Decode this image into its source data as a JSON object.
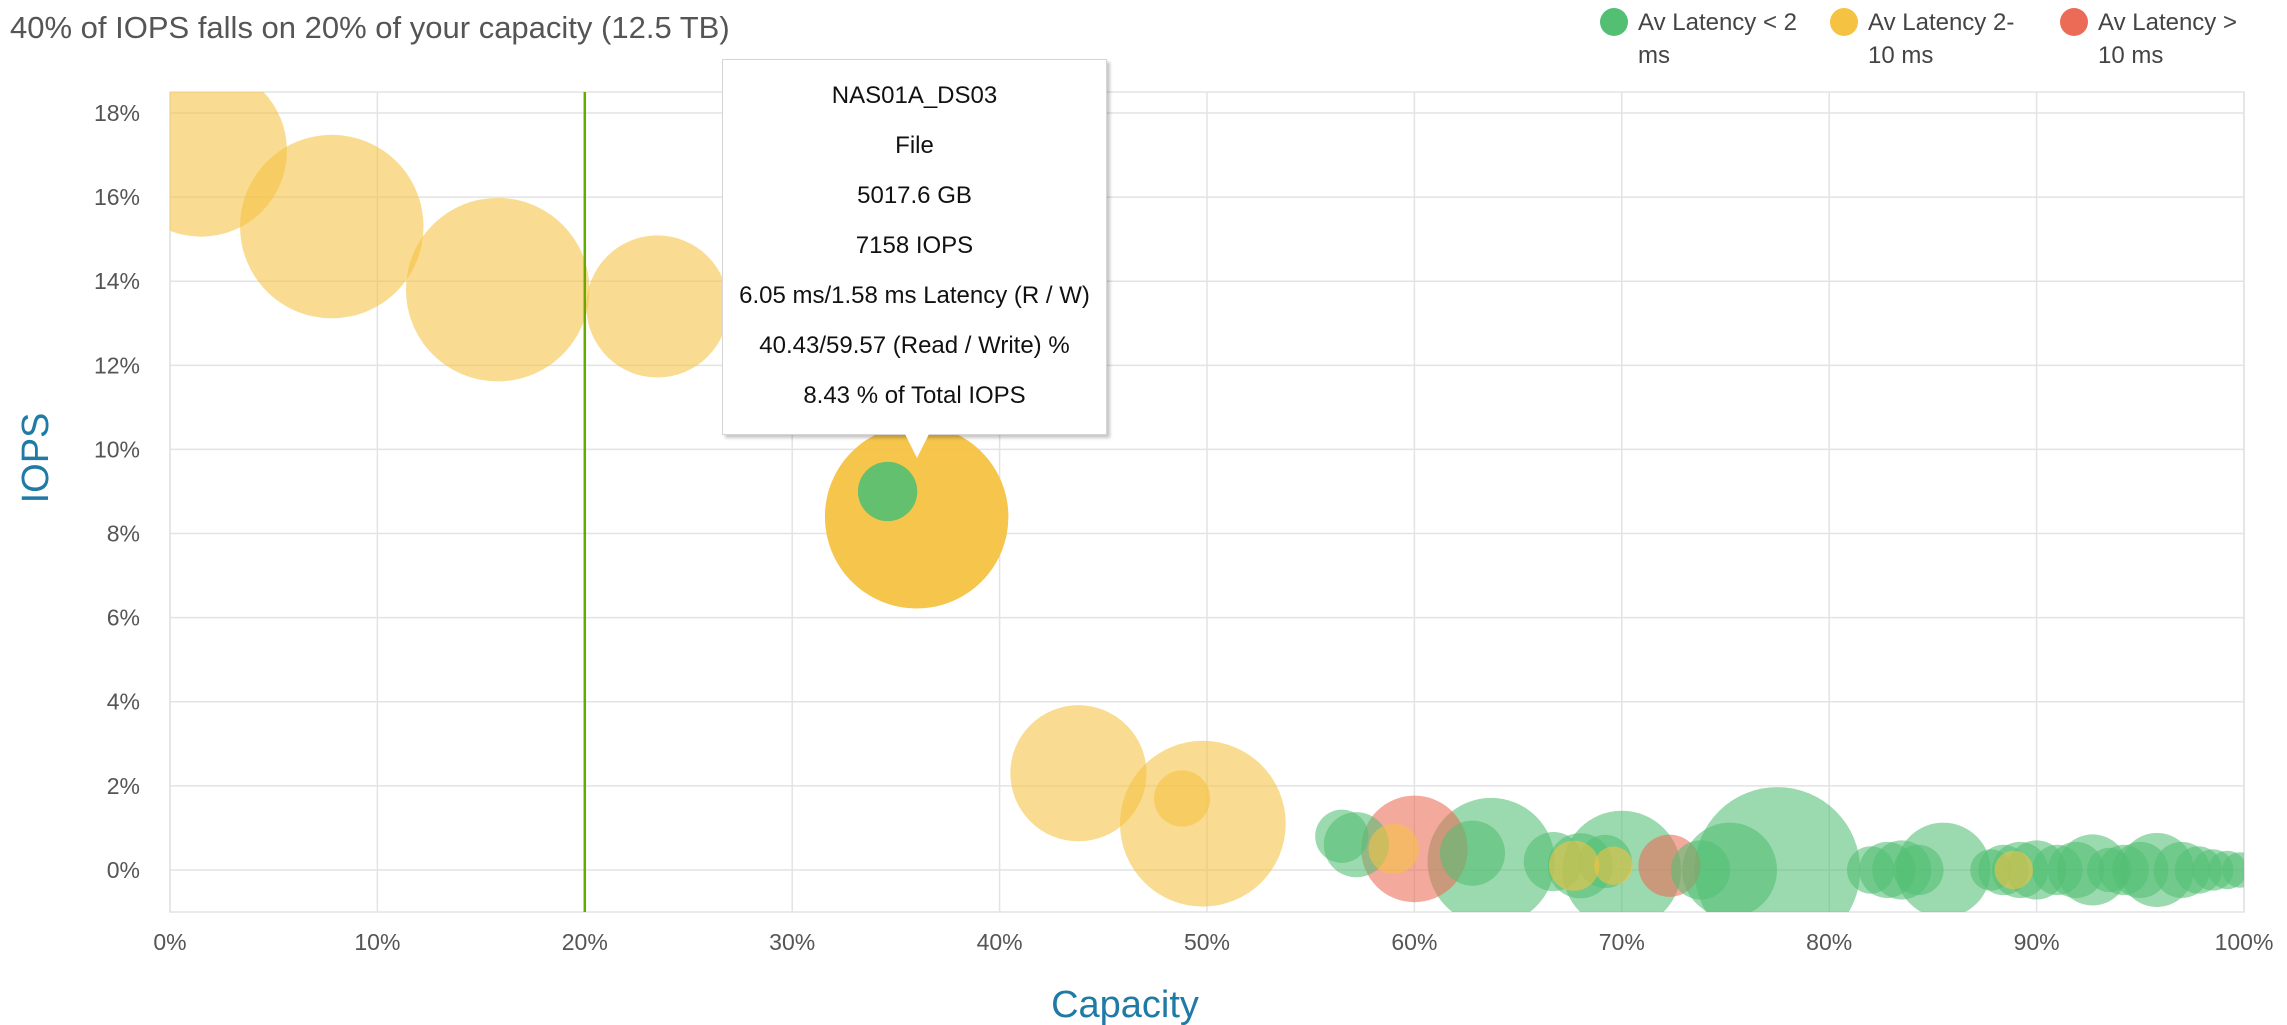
{
  "chart_data": {
    "type": "scatter",
    "title": "40% of IOPS falls on 20% of your capacity (12.5 TB)",
    "xlabel": "Capacity",
    "ylabel": "IOPS",
    "xlim": [
      0,
      100
    ],
    "ylim": [
      -1,
      18.5
    ],
    "x_ticks": [
      "0%",
      "10%",
      "20%",
      "30%",
      "40%",
      "50%",
      "60%",
      "70%",
      "80%",
      "90%",
      "100%"
    ],
    "y_ticks": [
      "0%",
      "2%",
      "4%",
      "6%",
      "8%",
      "10%",
      "12%",
      "14%",
      "16%",
      "18%"
    ],
    "grid": true,
    "legend_position": "top-right",
    "reference_line": {
      "axis": "x",
      "value": 20,
      "color": "#66aa00"
    },
    "colors": {
      "low": "#52bf73",
      "mid": "#f5c242",
      "high": "#ec6b56"
    },
    "series": [
      {
        "name": "Av Latency < 2 ms",
        "key": "low",
        "points": [
          {
            "x": 34.6,
            "y": 9.0,
            "size": 20
          },
          {
            "x": 56.5,
            "y": 0.8,
            "size": 18
          },
          {
            "x": 57.2,
            "y": 0.6,
            "size": 22
          },
          {
            "x": 62.8,
            "y": 0.4,
            "size": 22
          },
          {
            "x": 63.7,
            "y": 0.2,
            "size": 43
          },
          {
            "x": 66.7,
            "y": 0.2,
            "size": 20
          },
          {
            "x": 68.0,
            "y": 0.1,
            "size": 22
          },
          {
            "x": 69.2,
            "y": 0.2,
            "size": 18
          },
          {
            "x": 70.0,
            "y": 0.0,
            "size": 40
          },
          {
            "x": 73.8,
            "y": 0.0,
            "size": 20
          },
          {
            "x": 75.2,
            "y": 0.0,
            "size": 32
          },
          {
            "x": 77.5,
            "y": 0.0,
            "size": 56
          },
          {
            "x": 82.0,
            "y": 0.0,
            "size": 16
          },
          {
            "x": 82.8,
            "y": 0.0,
            "size": 19
          },
          {
            "x": 83.5,
            "y": 0.0,
            "size": 20
          },
          {
            "x": 84.3,
            "y": 0.0,
            "size": 17
          },
          {
            "x": 85.5,
            "y": 0.0,
            "size": 32
          },
          {
            "x": 87.8,
            "y": 0.0,
            "size": 14
          },
          {
            "x": 88.4,
            "y": 0.0,
            "size": 17
          },
          {
            "x": 89.2,
            "y": 0.0,
            "size": 19
          },
          {
            "x": 90.0,
            "y": 0.0,
            "size": 20
          },
          {
            "x": 91.0,
            "y": 0.0,
            "size": 17
          },
          {
            "x": 91.9,
            "y": 0.0,
            "size": 19
          },
          {
            "x": 92.7,
            "y": 0.0,
            "size": 24
          },
          {
            "x": 93.5,
            "y": 0.0,
            "size": 15
          },
          {
            "x": 94.2,
            "y": 0.0,
            "size": 17
          },
          {
            "x": 95.0,
            "y": 0.0,
            "size": 19
          },
          {
            "x": 95.8,
            "y": 0.0,
            "size": 25
          },
          {
            "x": 97.0,
            "y": 0.0,
            "size": 19
          },
          {
            "x": 97.8,
            "y": 0.0,
            "size": 16
          },
          {
            "x": 98.5,
            "y": 0.0,
            "size": 14
          },
          {
            "x": 99.2,
            "y": 0.0,
            "size": 13
          },
          {
            "x": 99.8,
            "y": 0.0,
            "size": 12
          }
        ]
      },
      {
        "name": "Av Latency 2-10 ms",
        "key": "mid",
        "points": [
          {
            "x": 1.5,
            "y": 17.1,
            "size": 58
          },
          {
            "x": 7.8,
            "y": 15.3,
            "size": 62
          },
          {
            "x": 15.8,
            "y": 13.8,
            "size": 62
          },
          {
            "x": 23.5,
            "y": 13.4,
            "size": 48
          },
          {
            "x": 28.5,
            "y": 12.8,
            "size": 26
          },
          {
            "x": 36.0,
            "y": 8.4,
            "size": 62
          },
          {
            "x": 43.8,
            "y": 2.3,
            "size": 46
          },
          {
            "x": 48.8,
            "y": 1.7,
            "size": 19
          },
          {
            "x": 49.8,
            "y": 1.1,
            "size": 56
          },
          {
            "x": 59.0,
            "y": 0.5,
            "size": 17
          },
          {
            "x": 67.7,
            "y": 0.1,
            "size": 17
          },
          {
            "x": 69.6,
            "y": 0.1,
            "size": 13
          },
          {
            "x": 88.9,
            "y": 0.0,
            "size": 13
          }
        ]
      },
      {
        "name": "Av Latency > 10 ms",
        "key": "high",
        "points": [
          {
            "x": 60.0,
            "y": 0.5,
            "size": 36
          },
          {
            "x": 72.3,
            "y": 0.1,
            "size": 21
          }
        ]
      }
    ],
    "tooltip": {
      "lines": [
        "NAS01A_DS03",
        "File",
        "5017.6 GB",
        "7158 IOPS",
        "6.05 ms/1.58 ms Latency (R / W)",
        "40.43/59.57 (Read / Write) %",
        "8.43 % of Total IOPS"
      ]
    }
  }
}
